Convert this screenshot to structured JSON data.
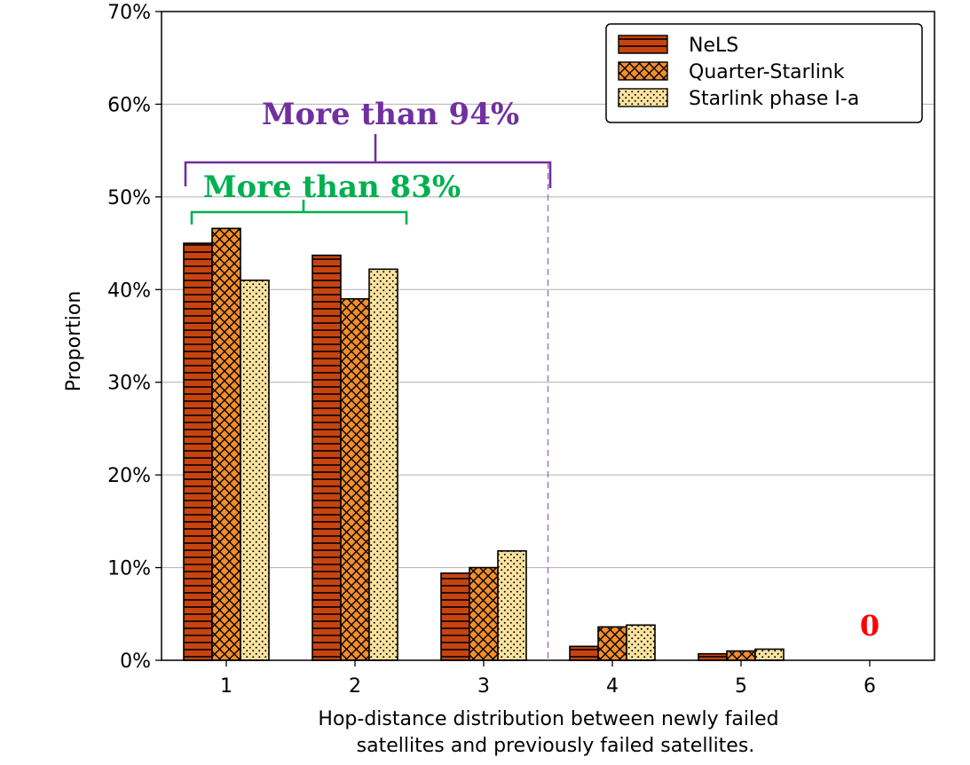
{
  "chart_data": {
    "type": "bar",
    "categories": [
      "1",
      "2",
      "3",
      "4",
      "5",
      "6"
    ],
    "series": [
      {
        "name": "NeLS",
        "values": [
          0.45,
          0.437,
          0.094,
          0.015,
          0.007,
          0
        ],
        "color": "#c8440f",
        "pattern": "horizontal-lines"
      },
      {
        "name": "Quarter-Starlink",
        "values": [
          0.466,
          0.39,
          0.1,
          0.036,
          0.01,
          0
        ],
        "color": "#f28e2b",
        "pattern": "crosshatch"
      },
      {
        "name": "Starlink phase I-a",
        "values": [
          0.41,
          0.422,
          0.118,
          0.038,
          0.012,
          0
        ],
        "color": "#fbe3a0",
        "pattern": "dots"
      }
    ],
    "title": "",
    "xlabel": "Hop-distance distribution between newly failed satellites and previously failed satellites.",
    "ylabel": "Proportion",
    "ylim": [
      0,
      0.7
    ],
    "yticks": [
      "0%",
      "10%",
      "20%",
      "30%",
      "40%",
      "50%",
      "60%",
      "70%"
    ],
    "grid": "y-axis horizontal lines",
    "legend_position": "top-right",
    "annotations": [
      {
        "text": "More than 94%",
        "color": "#7030a0",
        "span": [
          "1",
          "3"
        ]
      },
      {
        "text": "More than 83%",
        "color": "#00b050",
        "span": [
          "1",
          "2"
        ]
      },
      {
        "text": "0",
        "color": "#ff0000",
        "category": "6"
      }
    ]
  }
}
